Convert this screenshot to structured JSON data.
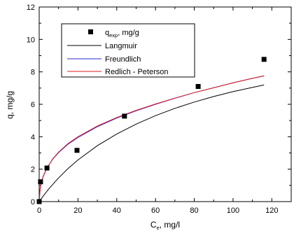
{
  "chart_data": {
    "type": "scatter",
    "xlabel": {
      "main": "C",
      "sub": "e",
      "rest": ", mg/l"
    },
    "ylabel": "q, mg/g",
    "xlim": [
      0,
      130
    ],
    "ylim": [
      0,
      12
    ],
    "xticks": [
      0,
      20,
      40,
      60,
      80,
      100,
      120
    ],
    "yticks": [
      0,
      2,
      4,
      6,
      8,
      10,
      12
    ],
    "grid": false,
    "legend_position": "top-left",
    "series": [
      {
        "name": {
          "main": "q",
          "sub": "exp",
          "rest": ", mg/g"
        },
        "kind": "points",
        "color": "#000000",
        "x": [
          0,
          0.7,
          4,
          19.5,
          44,
          82,
          116
        ],
        "y": [
          0,
          1.22,
          2.07,
          3.16,
          5.27,
          7.1,
          8.77
        ]
      },
      {
        "name": "Langmuir",
        "kind": "line",
        "color": "#000000",
        "x": [
          0,
          2,
          5,
          10,
          15,
          20,
          30,
          40,
          50,
          60,
          70,
          80,
          90,
          100,
          110,
          116
        ],
        "y": [
          0,
          0.33,
          0.79,
          1.46,
          2.05,
          2.57,
          3.45,
          4.17,
          4.78,
          5.3,
          5.75,
          6.14,
          6.48,
          6.78,
          7.04,
          7.19
        ]
      },
      {
        "name": "Freundlich",
        "kind": "line",
        "color": "#2b2bd6",
        "x": [
          0,
          0.5,
          1,
          2,
          4,
          7,
          10,
          15,
          20,
          30,
          40,
          50,
          60,
          70,
          80,
          90,
          100,
          110,
          116
        ],
        "y": [
          0,
          0.84,
          1.15,
          1.55,
          2.08,
          2.62,
          3.02,
          3.55,
          3.95,
          4.62,
          5.15,
          5.6,
          6.0,
          6.37,
          6.72,
          7.02,
          7.33,
          7.6,
          7.75
        ]
      },
      {
        "name": "Redlich - Peterson",
        "kind": "line",
        "color": "#e01b1b",
        "x": [
          0,
          0.5,
          1,
          2,
          4,
          7,
          10,
          15,
          20,
          30,
          40,
          50,
          60,
          70,
          80,
          90,
          100,
          110,
          116
        ],
        "y": [
          0,
          0.78,
          1.1,
          1.52,
          2.07,
          2.64,
          3.05,
          3.59,
          4.0,
          4.66,
          5.19,
          5.63,
          6.02,
          6.38,
          6.72,
          7.02,
          7.32,
          7.6,
          7.76
        ]
      }
    ]
  }
}
